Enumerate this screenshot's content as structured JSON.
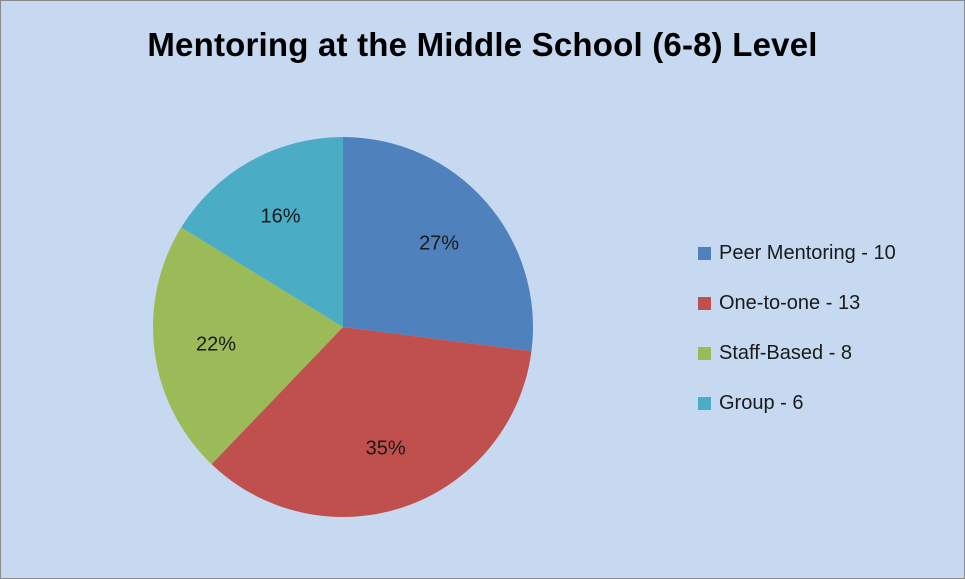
{
  "chart_data": {
    "type": "pie",
    "title": "Mentoring at the Middle School (6-8) Level",
    "slices": [
      {
        "label": "Peer Mentoring - 10",
        "value": 10,
        "percent_label": "27%",
        "color": "#4f81bd"
      },
      {
        "label": "One-to-one - 13",
        "value": 13,
        "percent_label": "35%",
        "color": "#c0504d"
      },
      {
        "label": "Staff-Based - 8",
        "value": 8,
        "percent_label": "22%",
        "color": "#9bbb59"
      },
      {
        "label": "Group - 6",
        "value": 6,
        "percent_label": "16%",
        "color": "#4bacc6"
      }
    ],
    "legend_position": "right"
  },
  "colors": {
    "background": "#c6d9f1"
  }
}
